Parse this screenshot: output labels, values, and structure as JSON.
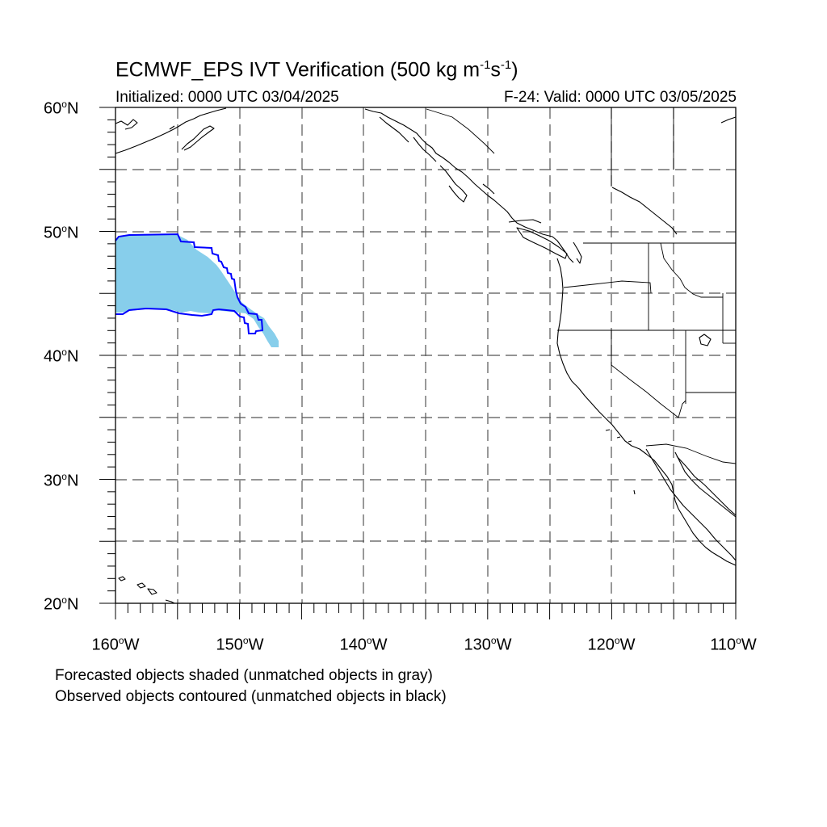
{
  "map": {
    "title_main": "ECMWF_EPS IVT Verification (500 kg m",
    "title_exp1": "-1",
    "title_mid": "s",
    "title_exp2": "-1",
    "title_end": ")",
    "init_label": "Initialized: 0000 UTC 03/04/2025",
    "valid_label": "F-24: Valid: 0000 UTC 03/05/2025",
    "legend_forecast": "Forecasted objects shaded (unmatched objects in gray)",
    "legend_observed": "Observed objects contoured (unmatched objects in black)",
    "lat_labels": [
      {
        "value": "60",
        "suffix": "N"
      },
      {
        "value": "50",
        "suffix": "N"
      },
      {
        "value": "40",
        "suffix": "N"
      },
      {
        "value": "30",
        "suffix": "N"
      },
      {
        "value": "20",
        "suffix": "N"
      }
    ],
    "lon_labels": [
      {
        "value": "160",
        "suffix": "W"
      },
      {
        "value": "150",
        "suffix": "W"
      },
      {
        "value": "140",
        "suffix": "W"
      },
      {
        "value": "130",
        "suffix": "W"
      },
      {
        "value": "120",
        "suffix": "W"
      },
      {
        "value": "110",
        "suffix": "W"
      }
    ],
    "degree_symbol": "o",
    "extent": {
      "lon_min": -160,
      "lon_max": -110,
      "lat_min": 20,
      "lat_max": 60
    },
    "colors": {
      "forecast_fill": "#87ceeb",
      "observed_contour": "#0000ff",
      "coast": "#000000",
      "grid": "#555555"
    }
  }
}
